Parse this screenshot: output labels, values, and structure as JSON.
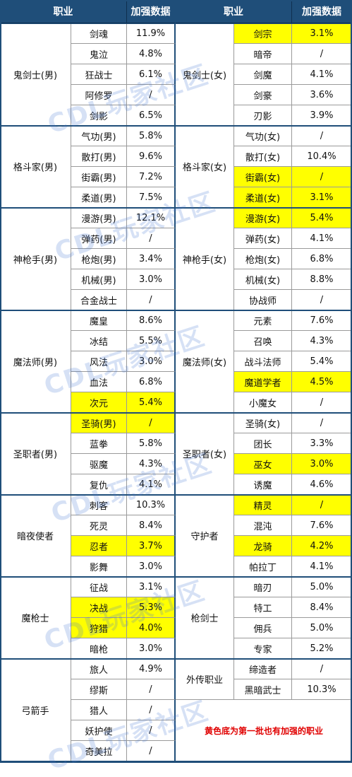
{
  "headers": [
    "职业",
    "加强数据",
    "职业",
    "加强数据"
  ],
  "colors": {
    "header_bg": "#1f4e79",
    "header_text": "#ffffff",
    "highlight": "#ffff00",
    "note": "#e00000",
    "watermark": "#4678d2"
  },
  "watermark": "CDL玩家社区",
  "note": "黄色底为第一批也有加强的职业",
  "groups_left": [
    {
      "name": "鬼剑士(男)",
      "rows": [
        {
          "job": "剑魂",
          "value": "11.9%",
          "hl": false
        },
        {
          "job": "鬼泣",
          "value": "4.8%",
          "hl": false
        },
        {
          "job": "狂战士",
          "value": "6.1%",
          "hl": false
        },
        {
          "job": "阿修罗",
          "value": "/",
          "hl": false
        },
        {
          "job": "剑影",
          "value": "6.5%",
          "hl": false
        }
      ]
    },
    {
      "name": "格斗家(男)",
      "rows": [
        {
          "job": "气功(男)",
          "value": "5.8%",
          "hl": false
        },
        {
          "job": "散打(男)",
          "value": "9.6%",
          "hl": false
        },
        {
          "job": "街霸(男)",
          "value": "7.2%",
          "hl": false
        },
        {
          "job": "柔道(男)",
          "value": "7.5%",
          "hl": false
        }
      ]
    },
    {
      "name": "神枪手(男)",
      "rows": [
        {
          "job": "漫游(男)",
          "value": "12.1%",
          "hl": false
        },
        {
          "job": "弹药(男)",
          "value": "/",
          "hl": false
        },
        {
          "job": "枪炮(男)",
          "value": "3.4%",
          "hl": false
        },
        {
          "job": "机械(男)",
          "value": "3.0%",
          "hl": false
        },
        {
          "job": "合金战士",
          "value": "/",
          "hl": false
        }
      ]
    },
    {
      "name": "魔法师(男)",
      "rows": [
        {
          "job": "魔皇",
          "value": "8.6%",
          "hl": false
        },
        {
          "job": "冰结",
          "value": "5.5%",
          "hl": false
        },
        {
          "job": "风法",
          "value": "3.0%",
          "hl": false
        },
        {
          "job": "血法",
          "value": "6.8%",
          "hl": false
        },
        {
          "job": "次元",
          "value": "5.4%",
          "hl": true
        }
      ]
    },
    {
      "name": "圣职者(男)",
      "rows": [
        {
          "job": "圣骑(男)",
          "value": "/",
          "hl": true
        },
        {
          "job": "蓝拳",
          "value": "5.8%",
          "hl": false
        },
        {
          "job": "驱魔",
          "value": "4.3%",
          "hl": false
        },
        {
          "job": "复仇",
          "value": "4.1%",
          "hl": false
        }
      ]
    },
    {
      "name": "暗夜使者",
      "rows": [
        {
          "job": "刺客",
          "value": "10.3%",
          "hl": false
        },
        {
          "job": "死灵",
          "value": "8.4%",
          "hl": false
        },
        {
          "job": "忍者",
          "value": "3.7%",
          "hl": true
        },
        {
          "job": "影舞",
          "value": "3.0%",
          "hl": false
        }
      ]
    },
    {
      "name": "魔枪士",
      "rows": [
        {
          "job": "征战",
          "value": "3.1%",
          "hl": false
        },
        {
          "job": "决战",
          "value": "5.3%",
          "hl": true
        },
        {
          "job": "狩猎",
          "value": "4.0%",
          "hl": true
        },
        {
          "job": "暗枪",
          "value": "3.0%",
          "hl": false
        }
      ]
    },
    {
      "name": "弓箭手",
      "rows": [
        {
          "job": "旅人",
          "value": "4.9%",
          "hl": false
        },
        {
          "job": "缪斯",
          "value": "/",
          "hl": false
        },
        {
          "job": "猎人",
          "value": "/",
          "hl": false
        },
        {
          "job": "妖护使",
          "value": "/",
          "hl": false
        },
        {
          "job": "奇美拉",
          "value": "/",
          "hl": false
        }
      ]
    }
  ],
  "groups_right": [
    {
      "name": "鬼剑士(女)",
      "rows": [
        {
          "job": "剑宗",
          "value": "3.1%",
          "hl": true
        },
        {
          "job": "暗帝",
          "value": "/",
          "hl": false
        },
        {
          "job": "剑魔",
          "value": "4.1%",
          "hl": false
        },
        {
          "job": "剑豪",
          "value": "3.6%",
          "hl": false
        },
        {
          "job": "刃影",
          "value": "3.9%",
          "hl": false
        }
      ]
    },
    {
      "name": "格斗家(女)",
      "rows": [
        {
          "job": "气功(女)",
          "value": "/",
          "hl": false
        },
        {
          "job": "散打(女)",
          "value": "10.4%",
          "hl": false
        },
        {
          "job": "街霸(女)",
          "value": "/",
          "hl": true
        },
        {
          "job": "柔道(女)",
          "value": "3.1%",
          "hl": true
        }
      ]
    },
    {
      "name": "神枪手(女)",
      "rows": [
        {
          "job": "漫游(女)",
          "value": "5.4%",
          "hl": true
        },
        {
          "job": "弹药(女)",
          "value": "4.1%",
          "hl": false
        },
        {
          "job": "枪炮(女)",
          "value": "6.8%",
          "hl": false
        },
        {
          "job": "机械(女)",
          "value": "8.8%",
          "hl": false
        },
        {
          "job": "协战师",
          "value": "/",
          "hl": false
        }
      ]
    },
    {
      "name": "魔法师(女)",
      "rows": [
        {
          "job": "元素",
          "value": "7.6%",
          "hl": false
        },
        {
          "job": "召唤",
          "value": "4.3%",
          "hl": false
        },
        {
          "job": "战斗法师",
          "value": "5.4%",
          "hl": false
        },
        {
          "job": "魔道学者",
          "value": "4.5%",
          "hl": true
        },
        {
          "job": "小魔女",
          "value": "/",
          "hl": false
        }
      ]
    },
    {
      "name": "圣职者(女)",
      "rows": [
        {
          "job": "圣骑(女)",
          "value": "/",
          "hl": false
        },
        {
          "job": "团长",
          "value": "3.3%",
          "hl": false
        },
        {
          "job": "巫女",
          "value": "3.0%",
          "hl": true
        },
        {
          "job": "诱魔",
          "value": "4.6%",
          "hl": false
        }
      ]
    },
    {
      "name": "守护者",
      "rows": [
        {
          "job": "精灵",
          "value": "/",
          "hl": true
        },
        {
          "job": "混沌",
          "value": "7.6%",
          "hl": false
        },
        {
          "job": "龙骑",
          "value": "4.2%",
          "hl": true
        },
        {
          "job": "帕拉丁",
          "value": "4.1%",
          "hl": false
        }
      ]
    },
    {
      "name": "枪剑士",
      "rows": [
        {
          "job": "暗刃",
          "value": "5.0%",
          "hl": false
        },
        {
          "job": "特工",
          "value": "8.4%",
          "hl": false
        },
        {
          "job": "佣兵",
          "value": "5.0%",
          "hl": false
        },
        {
          "job": "专家",
          "value": "5.2%",
          "hl": false
        }
      ]
    },
    {
      "name": "外传职业",
      "rows": [
        {
          "job": "缔造者",
          "value": "/",
          "hl": false
        },
        {
          "job": "黑暗武士",
          "value": "10.3%",
          "hl": false
        }
      ]
    }
  ]
}
